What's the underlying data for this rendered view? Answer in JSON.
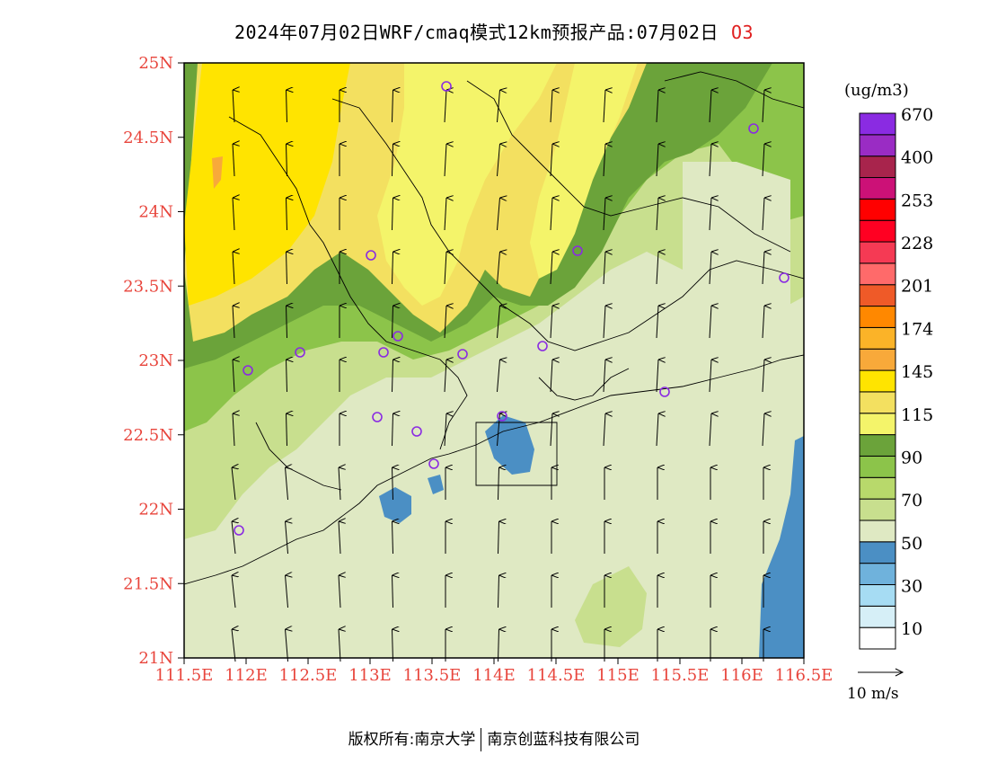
{
  "title": {
    "main": "2024年07月02日WRF/cmaq模式12km预报产品:07月02日",
    "species": "O3"
  },
  "unit_label": "(ug/m3)",
  "wind_reference_label": "10 m/s",
  "footer": {
    "copyright": "版权所有:南京大学",
    "company": "南京创蓝科技有限公司"
  },
  "lat_ticks": [
    "25N",
    "24.5N",
    "24N",
    "23.5N",
    "23N",
    "22.5N",
    "22N",
    "21.5N",
    "21N"
  ],
  "lon_ticks": [
    "111.5E",
    "112E",
    "112.5E",
    "113E",
    "113.5E",
    "114E",
    "114.5E",
    "115E",
    "115.5E",
    "116E",
    "116.5E"
  ],
  "colorbar": {
    "colors": [
      "#ffffff",
      "#d6eff7",
      "#a6dcf3",
      "#6fb2dc",
      "#4b8fc4",
      "#dfe9c3",
      "#c8df8e",
      "#b8d96b",
      "#8cc44a",
      "#6ba33a",
      "#f4f46a",
      "#f3e060",
      "#ffe400",
      "#f8a93a",
      "#fbb328",
      "#ff8800",
      "#ef5a28",
      "#ff6a6a",
      "#f53a54",
      "#ff0022",
      "#ff0000",
      "#cc1177",
      "#a8244c",
      "#9a2cc4",
      "#8a2be2"
    ],
    "labels": [
      "10",
      "30",
      "50",
      "70",
      "90",
      "115",
      "145",
      "174",
      "201",
      "228",
      "253",
      "400",
      "670"
    ]
  },
  "stations_icon": "station-circle-icon",
  "wind_icon": "wind-arrow-icon"
}
